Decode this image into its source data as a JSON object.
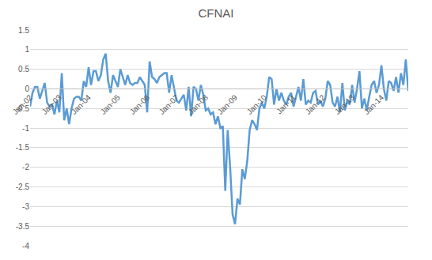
{
  "chart_data": {
    "type": "line",
    "title": "CFNAI",
    "categories": [
      "Jan-02",
      null,
      null,
      null,
      null,
      null,
      null,
      null,
      null,
      null,
      null,
      null,
      "Jan-03",
      null,
      null,
      null,
      null,
      null,
      null,
      null,
      null,
      null,
      null,
      null,
      "Jan-04",
      null,
      null,
      null,
      null,
      null,
      null,
      null,
      null,
      null,
      null,
      null,
      "Jan-05",
      null,
      null,
      null,
      null,
      null,
      null,
      null,
      null,
      null,
      null,
      null,
      "Jan-06",
      null,
      null,
      null,
      null,
      null,
      null,
      null,
      null,
      null,
      null,
      null,
      "Jan-07",
      null,
      null,
      null,
      null,
      null,
      null,
      null,
      null,
      null,
      null,
      null,
      "Jan-08",
      null,
      null,
      null,
      null,
      null,
      null,
      null,
      null,
      null,
      null,
      null,
      "Jan-09",
      null,
      null,
      null,
      null,
      null,
      null,
      null,
      null,
      null,
      null,
      null,
      "Jan-10",
      null,
      null,
      null,
      null,
      null,
      null,
      null,
      null,
      null,
      null,
      null,
      "Jan-11",
      null,
      null,
      null,
      null,
      null,
      null,
      null,
      null,
      null,
      null,
      null,
      "Jan-12",
      null,
      null,
      null,
      null,
      null,
      null,
      null,
      null,
      null,
      null,
      null,
      "Jan-13",
      null,
      null,
      null,
      null,
      null,
      null,
      null,
      null,
      null,
      null,
      null,
      "Jan-14",
      null,
      null,
      null,
      null,
      null,
      null,
      null,
      null,
      null,
      null,
      null
    ],
    "values": [
      -0.45,
      -0.1,
      0.05,
      0.05,
      -0.25,
      -0.05,
      0.15,
      -0.35,
      -0.45,
      -0.4,
      -0.65,
      -0.3,
      -0.6,
      0.4,
      -0.8,
      -0.5,
      -0.9,
      -0.5,
      -0.25,
      -0.2,
      -0.2,
      -0.3,
      0.2,
      0.05,
      0.55,
      0.1,
      0.45,
      0.45,
      0.2,
      0.35,
      0.75,
      0.9,
      0.2,
      -0.1,
      0.35,
      0.2,
      0.05,
      0.5,
      0.3,
      0.1,
      0.35,
      0.15,
      0.1,
      0.15,
      0.15,
      0.3,
      0.2,
      0.1,
      -0.6,
      0.7,
      0.3,
      0.25,
      0.15,
      0.3,
      0.35,
      0.4,
      0.4,
      -0.1,
      0.35,
      0.0,
      -0.3,
      -0.35,
      -0.25,
      -0.15,
      -0.55,
      0.05,
      -0.7,
      0.05,
      0.0,
      -0.3,
      0.1,
      -0.15,
      -0.55,
      -0.5,
      -0.65,
      -0.6,
      -0.9,
      -0.7,
      -1.0,
      -0.95,
      -2.6,
      -1.05,
      -2.0,
      -3.2,
      -3.45,
      -2.8,
      -2.95,
      -2.05,
      -2.3,
      -1.85,
      -1.05,
      -0.8,
      -0.9,
      -1.05,
      -0.5,
      -0.35,
      -0.5,
      -0.2,
      0.3,
      0.25,
      -0.4,
      0.0,
      -0.3,
      -0.1,
      -0.3,
      -0.4,
      -0.2,
      -0.1,
      -0.45,
      -0.2,
      0.05,
      -0.3,
      0.25,
      -0.4,
      -0.3,
      -0.35,
      -0.1,
      -0.05,
      -0.4,
      -0.3,
      -0.45,
      -0.25,
      0.2,
      0.1,
      -0.35,
      -0.45,
      -0.2,
      -0.6,
      0.15,
      -0.55,
      -0.3,
      -0.4,
      0.1,
      -0.35,
      0.0,
      0.45,
      -0.5,
      -0.25,
      -0.55,
      -0.2,
      0.1,
      0.2,
      -0.1,
      0.1,
      0.6,
      0.0,
      -0.3,
      0.2,
      0.15,
      -0.05,
      0.3,
      -0.1,
      0.4,
      0.1,
      0.75,
      -0.05
    ],
    "color": "#5b9bd5",
    "ylim": [
      -4,
      1.5
    ],
    "yticks": [
      -4,
      -3.5,
      -3,
      -2.5,
      -2,
      -1.5,
      -1,
      -0.5,
      0,
      0.5,
      1,
      1.5
    ],
    "grid": true
  }
}
